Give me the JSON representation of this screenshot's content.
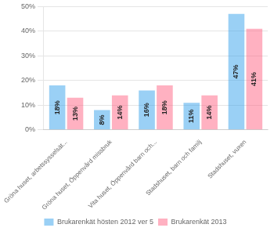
{
  "chart_data": {
    "type": "bar",
    "categories": [
      "Gröna huset, arbetssysselsät...",
      "Gröna huset, Öppenvård missbruk",
      "Vita huset, Öppenvård barn och...",
      "Stadshuset, barn och familj",
      "Stadshuset, vuxen"
    ],
    "series": [
      {
        "name": "Brukarenkät hösten 2012 ver 5",
        "values": [
          18,
          8,
          16,
          11,
          47
        ],
        "value_labels": [
          "18%",
          "8%",
          "16%",
          "11%",
          "47%"
        ]
      },
      {
        "name": "Brukarenkät 2013",
        "values": [
          13,
          14,
          18,
          14,
          41
        ],
        "value_labels": [
          "13%",
          "14%",
          "18%",
          "14%",
          "41%"
        ]
      }
    ],
    "ylim": [
      0,
      50
    ],
    "yticks": [
      {
        "value": 0,
        "label": "0%"
      },
      {
        "value": 10,
        "label": "10%"
      },
      {
        "value": 20,
        "label": "20%"
      },
      {
        "value": 30,
        "label": "30%"
      },
      {
        "value": 40,
        "label": "40%"
      },
      {
        "value": 50,
        "label": "50%"
      }
    ],
    "grid": true,
    "legend": "bottom",
    "data_labels": true
  }
}
